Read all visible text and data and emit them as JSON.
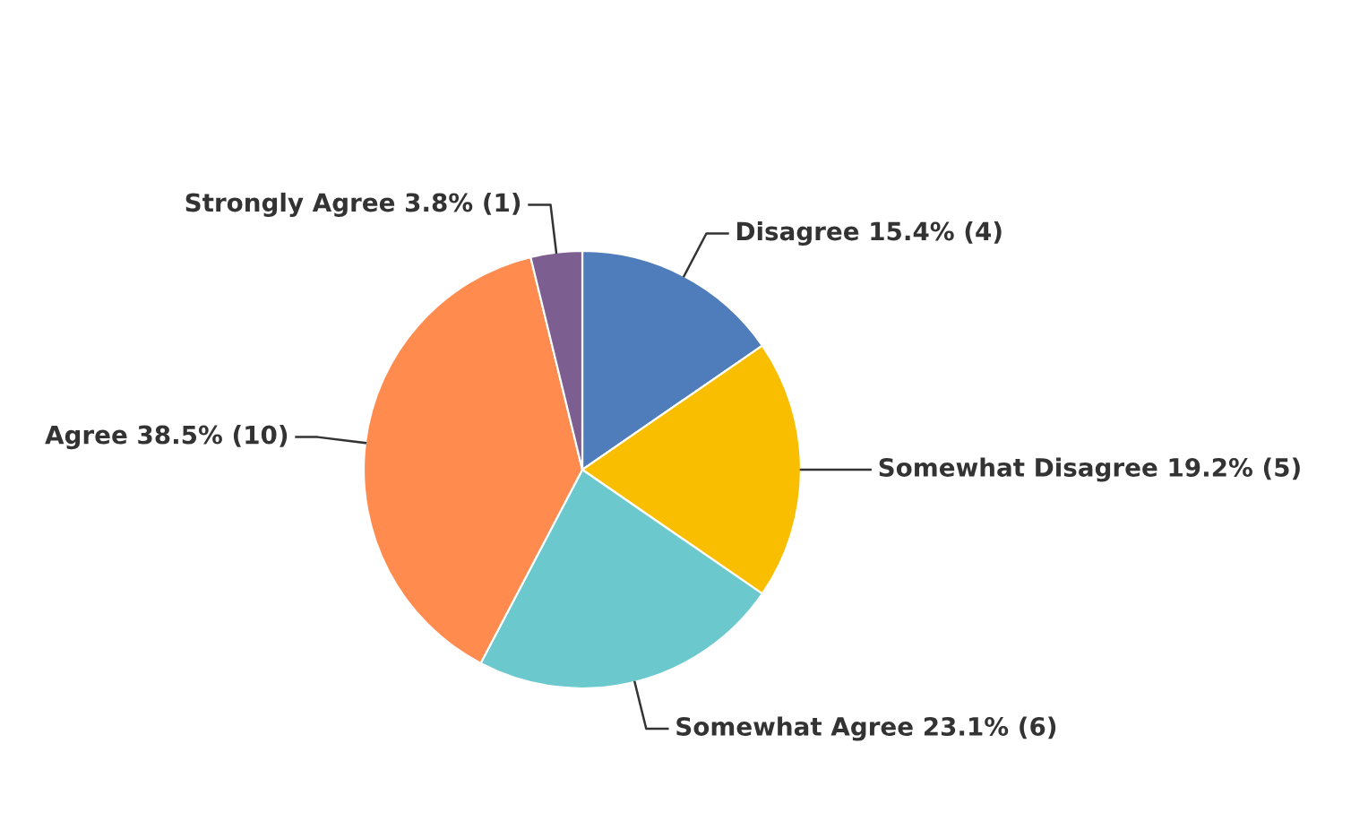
{
  "chart_data": {
    "type": "pie",
    "categories": [
      "Disagree",
      "Somewhat Disagree",
      "Somewhat Agree",
      "Agree",
      "Strongly Agree"
    ],
    "values": [
      15.4,
      19.2,
      23.1,
      38.5,
      3.8
    ],
    "value_labels": [
      "15.4% (4)",
      "19.2% (5)",
      "23.1% (6)",
      "38.5% (10)",
      "3.8% (1)"
    ],
    "colors": [
      "#4f7cba",
      "#f9be00",
      "#6bc8cd",
      "#ff8b4f",
      "#7d5e91"
    ],
    "legend": false
  }
}
